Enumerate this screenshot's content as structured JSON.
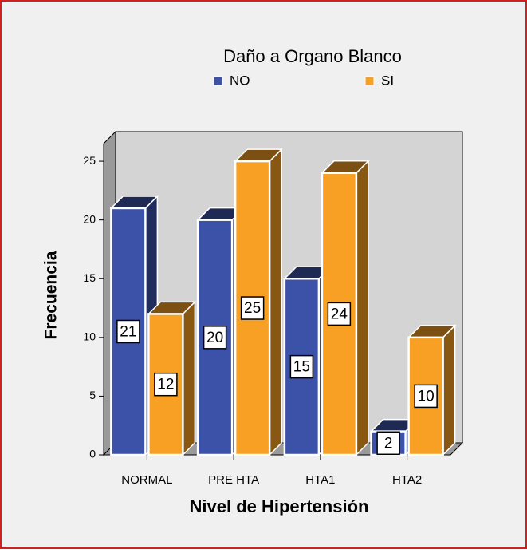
{
  "chart_data": {
    "type": "bar",
    "title": "Daño a Organo Blanco",
    "x_label": "Nivel de Hipertensión",
    "y_label": "Frecuencia",
    "categories": [
      "NORMAL",
      "PRE HTA",
      "HTA1",
      "HTA2"
    ],
    "series": [
      {
        "name": "NO",
        "color": "#3c52a8",
        "values": [
          21,
          20,
          15,
          2
        ]
      },
      {
        "name": "SI",
        "color": "#f7a023",
        "values": [
          12,
          25,
          24,
          10
        ]
      }
    ],
    "ylim": [
      0,
      26.5
    ],
    "yticks": [
      0,
      5,
      10,
      15,
      20,
      25
    ],
    "legend": "top"
  }
}
